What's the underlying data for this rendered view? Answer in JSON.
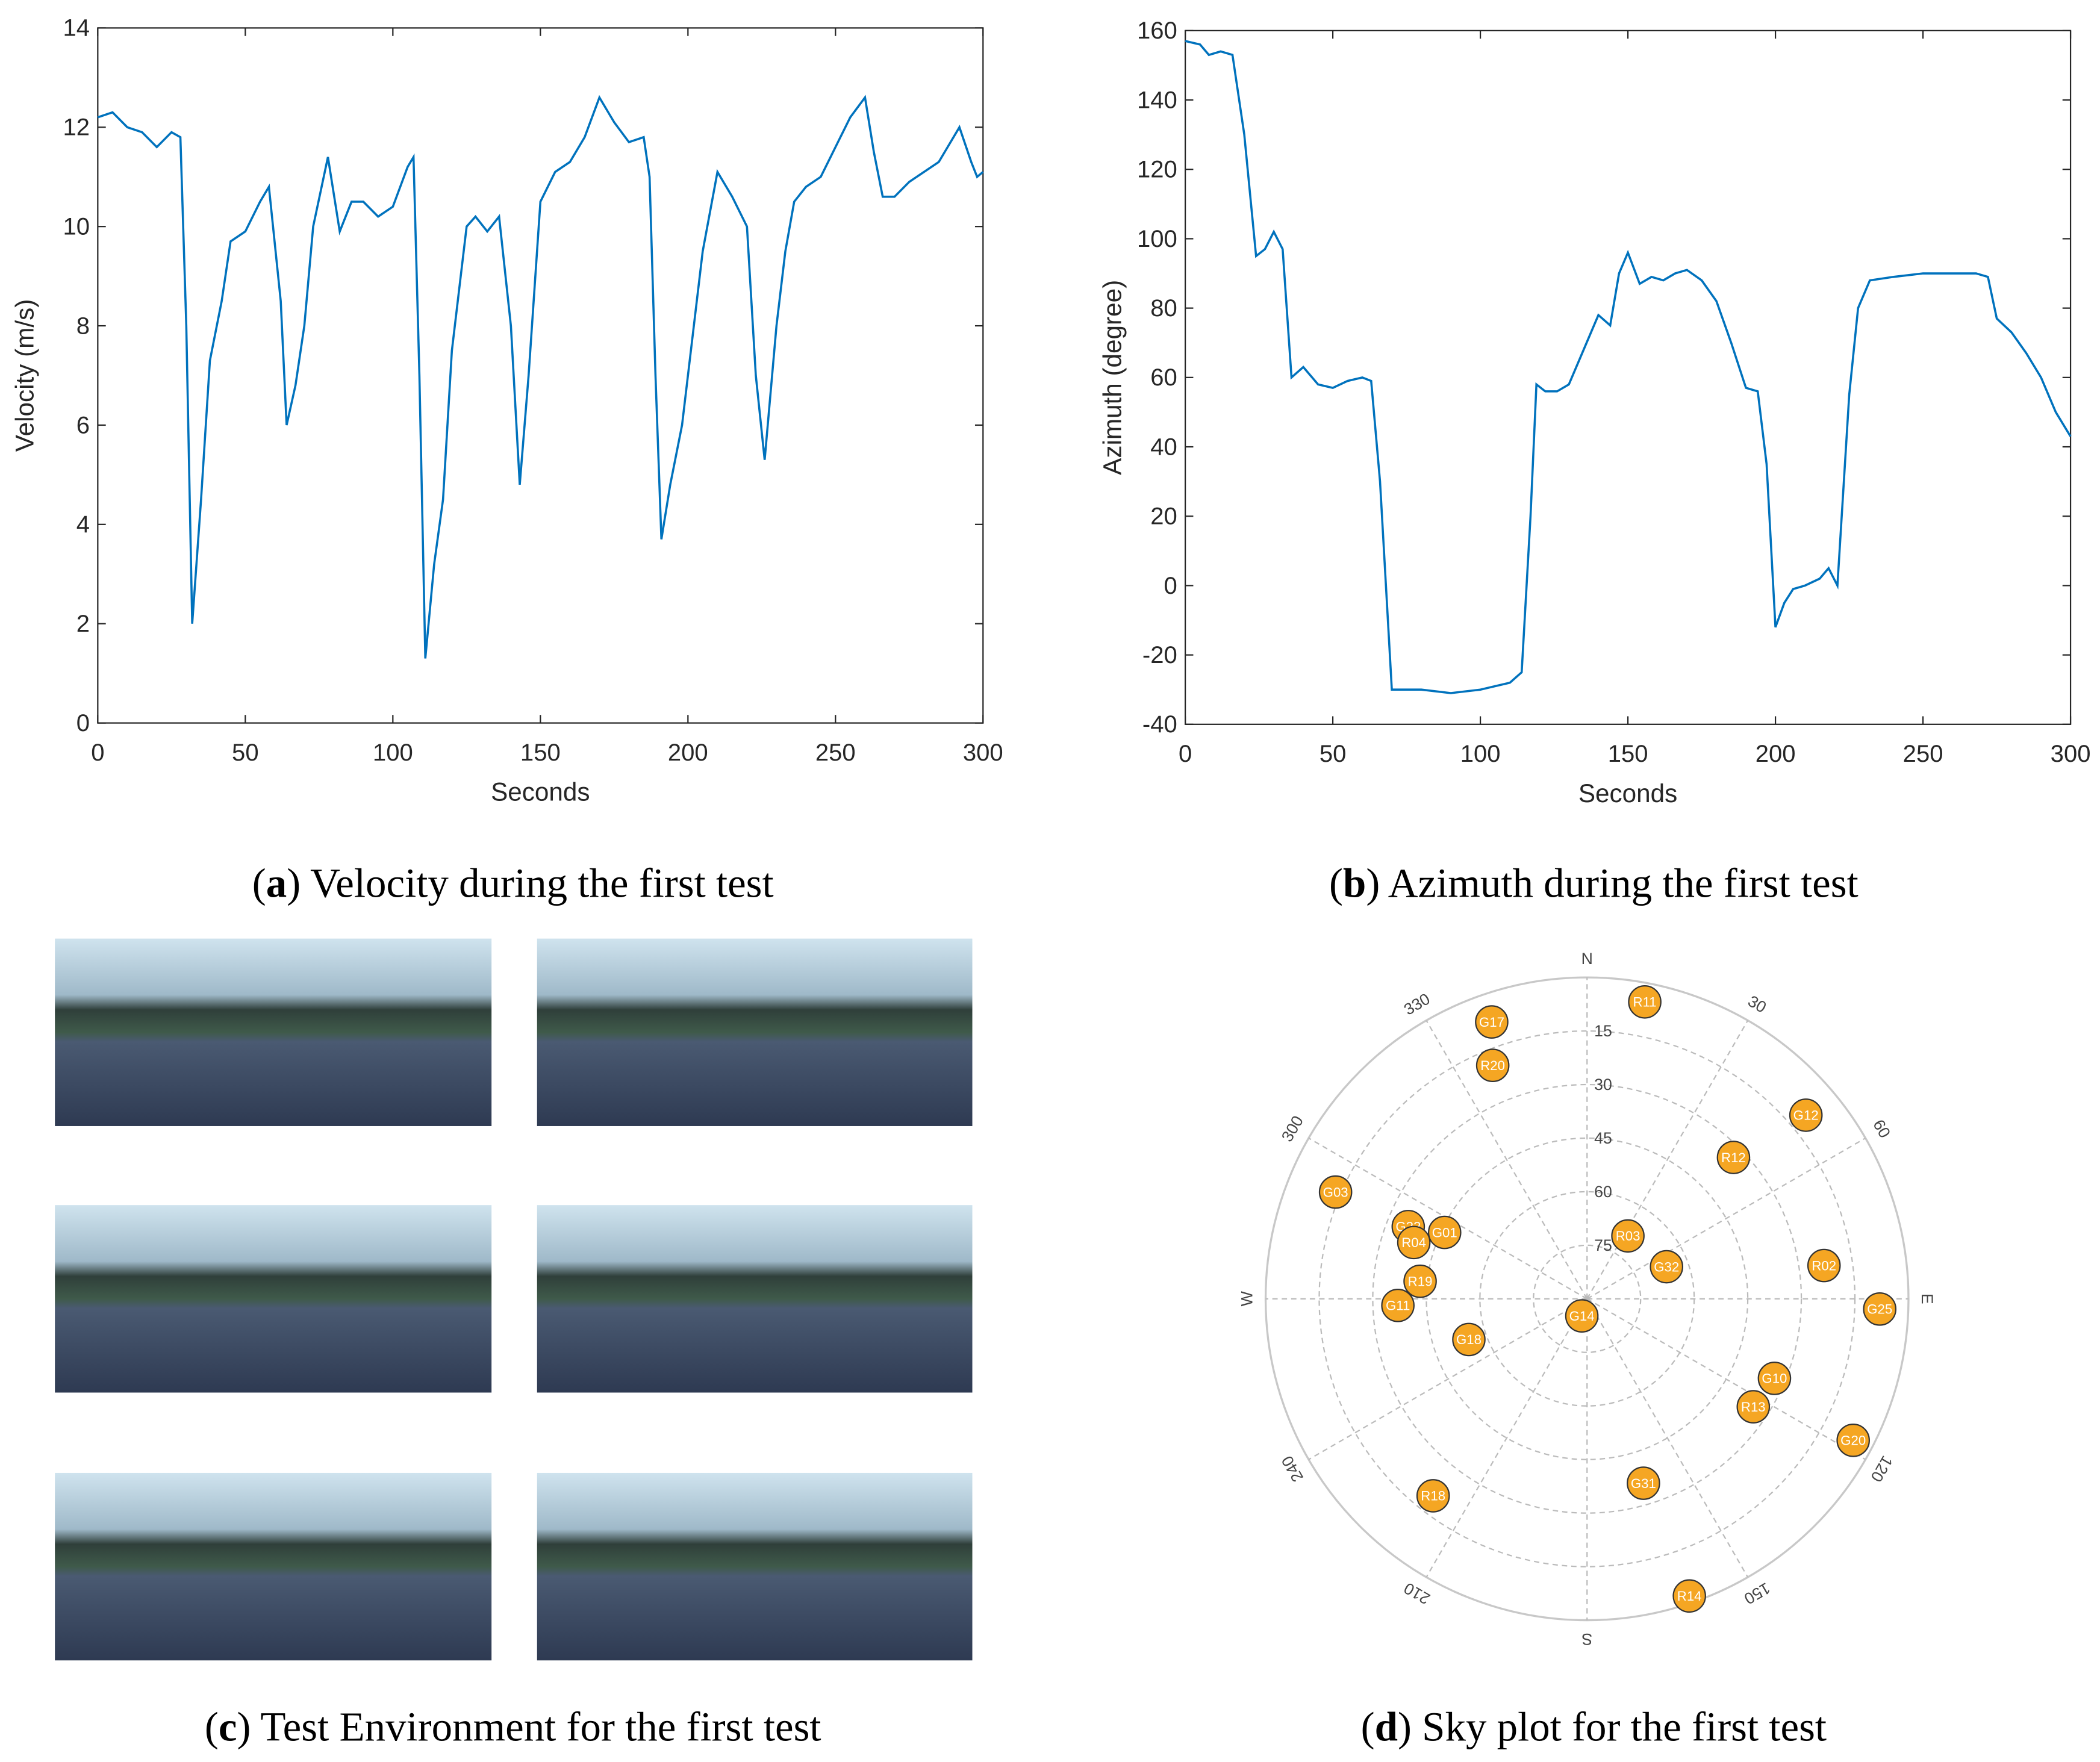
{
  "chart_data": [
    {
      "type": "line",
      "xlabel": "Seconds",
      "ylabel": "Velocity (m/s)",
      "color": "#0072bd",
      "xlim": [
        0,
        300
      ],
      "ylim": [
        0,
        14
      ],
      "xticks": [
        0,
        50,
        100,
        150,
        200,
        250,
        300
      ],
      "yticks": [
        0,
        2,
        4,
        6,
        8,
        10,
        12,
        14
      ],
      "x": [
        0,
        5,
        10,
        15,
        20,
        25,
        28,
        30,
        32,
        35,
        38,
        42,
        45,
        50,
        55,
        58,
        62,
        64,
        67,
        70,
        73,
        78,
        82,
        86,
        90,
        95,
        100,
        105,
        107,
        109,
        111,
        114,
        117,
        120,
        125,
        128,
        132,
        136,
        140,
        143,
        146,
        150,
        155,
        160,
        165,
        170,
        175,
        180,
        185,
        187,
        189,
        191,
        194,
        198,
        202,
        205,
        210,
        215,
        220,
        223,
        226,
        230,
        233,
        236,
        240,
        245,
        250,
        255,
        260,
        263,
        266,
        270,
        275,
        280,
        285,
        288,
        292,
        296,
        298,
        300
      ],
      "values": [
        12.2,
        12.3,
        12.0,
        11.9,
        11.6,
        11.9,
        11.8,
        8,
        2.0,
        4.5,
        7.3,
        8.5,
        9.7,
        9.9,
        10.5,
        10.8,
        8.5,
        6.0,
        6.8,
        8.0,
        10.0,
        11.4,
        9.9,
        10.5,
        10.5,
        10.2,
        10.4,
        11.2,
        11.4,
        7,
        1.3,
        3.2,
        4.5,
        7.5,
        10.0,
        10.2,
        9.9,
        10.2,
        8,
        4.8,
        7,
        10.5,
        11.1,
        11.3,
        11.8,
        12.6,
        12.1,
        11.7,
        11.8,
        11.0,
        7,
        3.7,
        4.8,
        6.0,
        8,
        9.5,
        11.1,
        10.6,
        10.0,
        7,
        5.3,
        8,
        9.5,
        10.5,
        10.8,
        11.0,
        11.6,
        12.2,
        12.6,
        11.5,
        10.6,
        10.6,
        10.9,
        11.1,
        11.3,
        11.6,
        12.0,
        11.3,
        11.0,
        11.1
      ]
    },
    {
      "type": "line",
      "xlabel": "Seconds",
      "ylabel": "Azimuth (degree)",
      "color": "#0072bd",
      "xlim": [
        0,
        300
      ],
      "ylim": [
        -40,
        160
      ],
      "xticks": [
        0,
        50,
        100,
        150,
        200,
        250,
        300
      ],
      "yticks": [
        -40,
        -20,
        0,
        20,
        40,
        60,
        80,
        100,
        120,
        140,
        160
      ],
      "x": [
        0,
        5,
        8,
        12,
        16,
        20,
        24,
        27,
        30,
        33,
        36,
        40,
        45,
        50,
        55,
        60,
        63,
        66,
        68,
        70,
        80,
        90,
        100,
        110,
        114,
        117,
        119,
        122,
        126,
        130,
        135,
        140,
        144,
        147,
        150,
        154,
        158,
        162,
        166,
        170,
        175,
        180,
        185,
        190,
        194,
        197,
        200,
        203,
        206,
        210,
        215,
        218,
        221,
        225,
        228,
        232,
        240,
        250,
        260,
        268,
        272,
        275,
        280,
        285,
        290,
        295,
        300
      ],
      "values": [
        157,
        156,
        153,
        154,
        153,
        130,
        95,
        97,
        102,
        97,
        60,
        63,
        58,
        57,
        59,
        60,
        59,
        30,
        0,
        -30,
        -30,
        -31,
        -30,
        -28,
        -25,
        20,
        58,
        56,
        56,
        58,
        68,
        78,
        75,
        90,
        96,
        87,
        89,
        88,
        90,
        91,
        88,
        82,
        70,
        57,
        56,
        35,
        -12,
        -5,
        -1,
        0,
        2,
        5,
        0,
        55,
        80,
        88,
        89,
        90,
        90,
        90,
        89,
        77,
        73,
        67,
        60,
        50,
        43
      ]
    },
    {
      "type": "polar",
      "color": "#f5a623",
      "rticks": [
        15,
        30,
        45,
        60,
        75
      ],
      "thetaticks": [
        {
          "value": 0,
          "label": "N"
        },
        30,
        60,
        {
          "value": 90,
          "label": "E"
        },
        120,
        150,
        {
          "value": 180,
          "label": "S"
        },
        210,
        240,
        {
          "value": 270,
          "label": "W"
        },
        300,
        330
      ],
      "points": [
        {
          "name": "R11",
          "azimuth": 11,
          "elevation": 5.3
        },
        {
          "name": "G17",
          "azimuth": 341,
          "elevation": 8
        },
        {
          "name": "R20",
          "azimuth": 338,
          "elevation": 19.5
        },
        {
          "name": "G12",
          "azimuth": 50,
          "elevation": 10
        },
        {
          "name": "R12",
          "azimuth": 46,
          "elevation": 33
        },
        {
          "name": "G03",
          "azimuth": 293,
          "elevation": 13.5
        },
        {
          "name": "G22",
          "azimuth": 292,
          "elevation": 36
        },
        {
          "name": "R04",
          "azimuth": 288,
          "elevation": 39
        },
        {
          "name": "G01",
          "azimuth": 295,
          "elevation": 46
        },
        {
          "name": "R03",
          "azimuth": 33,
          "elevation": 69
        },
        {
          "name": "G32",
          "azimuth": 68,
          "elevation": 66
        },
        {
          "name": "R02",
          "azimuth": 82,
          "elevation": 23
        },
        {
          "name": "G25",
          "azimuth": 92,
          "elevation": 8
        },
        {
          "name": "R19",
          "azimuth": 276,
          "elevation": 43
        },
        {
          "name": "G11",
          "azimuth": 268,
          "elevation": 37
        },
        {
          "name": "G14",
          "azimuth": 197,
          "elevation": 85
        },
        {
          "name": "G18",
          "azimuth": 251,
          "elevation": 55
        },
        {
          "name": "G10",
          "azimuth": 113,
          "elevation": 33
        },
        {
          "name": "R13",
          "azimuth": 123,
          "elevation": 34.5
        },
        {
          "name": "G20",
          "azimuth": 118,
          "elevation": 5.6
        },
        {
          "name": "R18",
          "azimuth": 218,
          "elevation": 20
        },
        {
          "name": "G31",
          "azimuth": 163,
          "elevation": 36
        },
        {
          "name": "R14",
          "azimuth": 161,
          "elevation": 2
        }
      ]
    }
  ],
  "captions": [
    {
      "parts": [
        {
          "text": "("
        },
        {
          "text": "a",
          "bold": true
        },
        {
          "text": ") Velocity during the first test"
        }
      ]
    },
    {
      "parts": [
        {
          "text": "("
        },
        {
          "text": "b",
          "bold": true
        },
        {
          "text": ") Azimuth during the first test"
        }
      ]
    },
    {
      "parts": [
        {
          "text": "("
        },
        {
          "text": "c",
          "bold": true
        },
        {
          "text": ") Test Environment for the first test"
        }
      ]
    },
    {
      "parts": [
        {
          "text": "("
        },
        {
          "text": "d",
          "bold": true
        },
        {
          "text": ") Sky plot for the first test"
        }
      ]
    }
  ]
}
